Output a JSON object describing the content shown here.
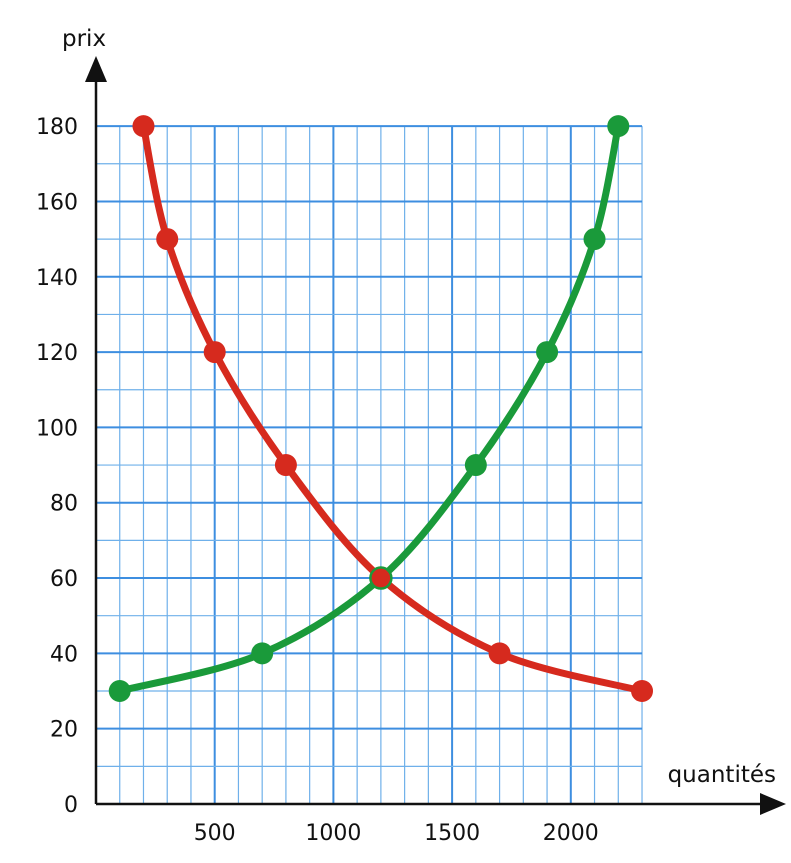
{
  "chart_data": {
    "type": "line",
    "xlabel": "quantités",
    "ylabel": "prix",
    "xlim": [
      0,
      2300
    ],
    "ylim": [
      0,
      180
    ],
    "x_ticks": [
      500,
      1000,
      1500,
      2000
    ],
    "y_ticks": [
      0,
      20,
      40,
      60,
      80,
      100,
      120,
      140,
      160,
      180
    ],
    "grid": true,
    "series": [
      {
        "color": "#d62a1e",
        "points": [
          [
            200,
            180
          ],
          [
            300,
            150
          ],
          [
            500,
            120
          ],
          [
            800,
            90
          ],
          [
            1200,
            60
          ],
          [
            1700,
            40
          ],
          [
            2300,
            30
          ]
        ]
      },
      {
        "color": "#1a9a3a",
        "points": [
          [
            100,
            30
          ],
          [
            700,
            40
          ],
          [
            1200,
            60
          ],
          [
            1600,
            90
          ],
          [
            1900,
            120
          ],
          [
            2100,
            150
          ],
          [
            2200,
            180
          ]
        ]
      }
    ]
  }
}
